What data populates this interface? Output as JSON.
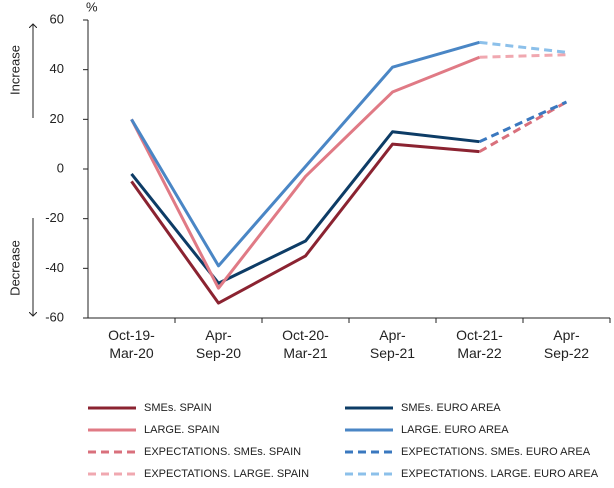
{
  "chart_data": {
    "type": "line",
    "unit": "%",
    "annotations": [
      "Increase",
      "Decrease"
    ],
    "categories": [
      "Oct-19-\nMar-20",
      "Apr-\nSep-20",
      "Oct-20-\nMar-21",
      "Apr-\nSep-21",
      "Oct-21-\nMar-22",
      "Apr-\nSep-22"
    ],
    "series": [
      {
        "name": "SMEs. SPAIN",
        "color": "#8b2331",
        "dashed": false,
        "values": [
          -5,
          -54,
          -35,
          10,
          7,
          null
        ]
      },
      {
        "name": "SMEs. EURO AREA",
        "color": "#0d3c66",
        "dashed": false,
        "values": [
          -2,
          -46,
          -29,
          15,
          11,
          null
        ]
      },
      {
        "name": "LARGE. SPAIN",
        "color": "#e07a85",
        "dashed": false,
        "values": [
          20,
          -48,
          -3,
          31,
          45,
          null
        ]
      },
      {
        "name": "LARGE. EURO AREA",
        "color": "#4a86c5",
        "dashed": false,
        "values": [
          20,
          -39,
          1,
          41,
          51,
          null
        ]
      },
      {
        "name": "EXPECTATIONS. SMEs. SPAIN",
        "color": "#d9707c",
        "dashed": true,
        "values": [
          null,
          null,
          null,
          null,
          7,
          27
        ]
      },
      {
        "name": "EXPECTATIONS. SMEs. EURO AREA",
        "color": "#3a78bf",
        "dashed": true,
        "values": [
          null,
          null,
          null,
          null,
          11,
          27
        ]
      },
      {
        "name": "EXPECTATIONS. LARGE. SPAIN",
        "color": "#f0a8b0",
        "dashed": true,
        "values": [
          null,
          null,
          null,
          null,
          45,
          46
        ]
      },
      {
        "name": "EXPECTATIONS. LARGE. EURO AREA",
        "color": "#8cc0ea",
        "dashed": true,
        "values": [
          null,
          null,
          null,
          null,
          51,
          47
        ]
      }
    ],
    "ylim": [
      -60,
      60
    ],
    "yticks": [
      -60,
      -40,
      -20,
      0,
      20,
      40,
      60
    ],
    "grid": false
  }
}
